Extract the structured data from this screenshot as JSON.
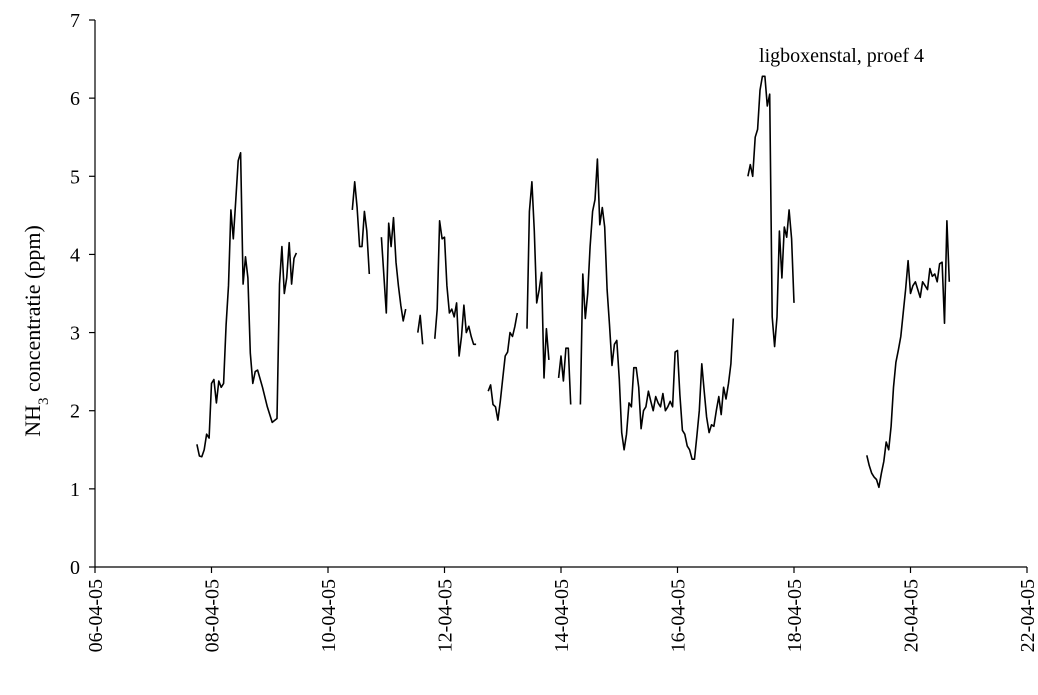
{
  "chart_data": {
    "type": "line",
    "title": "",
    "annotation": "ligboxenstal, proef 4",
    "xlabel": "",
    "ylabel_main": "NH",
    "ylabel_sub": "3",
    "ylabel_rest": " concentratie (ppm)",
    "ylim": [
      0,
      7
    ],
    "yticks": [
      "0",
      "1",
      "2",
      "3",
      "4",
      "5",
      "6",
      "7"
    ],
    "xlim": [
      "2005-04-06",
      "2005-04-22"
    ],
    "xticks": [
      "06-04-05",
      "08-04-05",
      "10-04-05",
      "12-04-05",
      "14-04-05",
      "16-04-05",
      "18-04-05",
      "20-04-05",
      "22-04-05"
    ],
    "grid": false,
    "legend": "none",
    "line_color": "#000000",
    "segments": [
      [
        [
          "2005-04-07 18:00",
          1.57
        ],
        [
          "2005-04-07 19:00",
          1.42
        ],
        [
          "2005-04-07 20:00",
          1.41
        ],
        [
          "2005-04-07 21:00",
          1.5
        ],
        [
          "2005-04-07 22:00",
          1.7
        ],
        [
          "2005-04-07 23:00",
          1.65
        ],
        [
          "2005-04-08 00:00",
          2.35
        ],
        [
          "2005-04-08 01:00",
          2.4
        ],
        [
          "2005-04-08 02:00",
          2.1
        ],
        [
          "2005-04-08 03:00",
          2.38
        ],
        [
          "2005-04-08 04:00",
          2.3
        ],
        [
          "2005-04-08 05:00",
          2.35
        ],
        [
          "2005-04-08 06:00",
          3.1
        ],
        [
          "2005-04-08 07:00",
          3.6
        ],
        [
          "2005-04-08 08:00",
          4.57
        ],
        [
          "2005-04-08 09:00",
          4.2
        ],
        [
          "2005-04-08 10:00",
          4.7
        ],
        [
          "2005-04-08 11:00",
          5.2
        ],
        [
          "2005-04-08 12:00",
          5.3
        ],
        [
          "2005-04-08 13:00",
          3.62
        ],
        [
          "2005-04-08 14:00",
          3.97
        ],
        [
          "2005-04-08 15:00",
          3.7
        ],
        [
          "2005-04-08 16:00",
          2.74
        ],
        [
          "2005-04-08 17:00",
          2.35
        ],
        [
          "2005-04-08 18:00",
          2.5
        ],
        [
          "2005-04-08 19:00",
          2.52
        ],
        [
          "2005-04-08 21:00",
          2.3
        ],
        [
          "2005-04-08 23:00",
          2.05
        ],
        [
          "2005-04-09 01:00",
          1.85
        ],
        [
          "2005-04-09 03:00",
          1.9
        ],
        [
          "2005-04-09 04:00",
          3.62
        ],
        [
          "2005-04-09 05:00",
          4.1
        ],
        [
          "2005-04-09 06:00",
          3.5
        ],
        [
          "2005-04-09 07:00",
          3.7
        ],
        [
          "2005-04-09 08:00",
          4.15
        ],
        [
          "2005-04-09 09:00",
          3.62
        ],
        [
          "2005-04-09 10:00",
          3.95
        ],
        [
          "2005-04-09 11:00",
          4.02
        ]
      ],
      [
        [
          "2005-04-10 10:00",
          4.57
        ],
        [
          "2005-04-10 11:00",
          4.93
        ],
        [
          "2005-04-10 12:00",
          4.6
        ],
        [
          "2005-04-10 13:00",
          4.1
        ],
        [
          "2005-04-10 14:00",
          4.1
        ],
        [
          "2005-04-10 15:00",
          4.55
        ],
        [
          "2005-04-10 16:00",
          4.3
        ],
        [
          "2005-04-10 17:00",
          3.75
        ]
      ],
      [
        [
          "2005-04-10 22:00",
          4.22
        ],
        [
          "2005-04-11 00:00",
          3.25
        ],
        [
          "2005-04-11 01:00",
          4.4
        ],
        [
          "2005-04-11 02:00",
          4.1
        ],
        [
          "2005-04-11 03:00",
          4.47
        ],
        [
          "2005-04-11 04:00",
          3.9
        ],
        [
          "2005-04-11 05:00",
          3.6
        ],
        [
          "2005-04-11 06:00",
          3.35
        ],
        [
          "2005-04-11 07:00",
          3.15
        ],
        [
          "2005-04-11 08:00",
          3.3
        ]
      ],
      [
        [
          "2005-04-11 13:00",
          3.0
        ],
        [
          "2005-04-11 14:00",
          3.22
        ],
        [
          "2005-04-11 15:00",
          2.85
        ]
      ],
      [
        [
          "2005-04-11 20:00",
          2.92
        ],
        [
          "2005-04-11 21:00",
          3.3
        ],
        [
          "2005-04-11 22:00",
          4.43
        ],
        [
          "2005-04-11 23:00",
          4.2
        ],
        [
          "2005-04-12 00:00",
          4.22
        ],
        [
          "2005-04-12 01:00",
          3.6
        ],
        [
          "2005-04-12 02:00",
          3.25
        ],
        [
          "2005-04-12 03:00",
          3.3
        ],
        [
          "2005-04-12 04:00",
          3.2
        ],
        [
          "2005-04-12 05:00",
          3.38
        ],
        [
          "2005-04-12 06:00",
          2.7
        ],
        [
          "2005-04-12 07:00",
          2.95
        ],
        [
          "2005-04-12 08:00",
          3.35
        ],
        [
          "2005-04-12 09:00",
          3.0
        ],
        [
          "2005-04-12 10:00",
          3.08
        ],
        [
          "2005-04-12 11:00",
          2.95
        ],
        [
          "2005-04-12 12:00",
          2.85
        ],
        [
          "2005-04-12 13:00",
          2.85
        ]
      ],
      [
        [
          "2005-04-12 18:00",
          2.25
        ],
        [
          "2005-04-12 19:00",
          2.33
        ],
        [
          "2005-04-12 20:00",
          2.08
        ],
        [
          "2005-04-12 21:00",
          2.05
        ],
        [
          "2005-04-12 22:00",
          1.88
        ],
        [
          "2005-04-12 23:00",
          2.12
        ],
        [
          "2005-04-13 00:00",
          2.42
        ],
        [
          "2005-04-13 01:00",
          2.7
        ],
        [
          "2005-04-13 02:00",
          2.75
        ],
        [
          "2005-04-13 03:00",
          3.0
        ],
        [
          "2005-04-13 04:00",
          2.95
        ],
        [
          "2005-04-13 05:00",
          3.08
        ],
        [
          "2005-04-13 06:00",
          3.25
        ]
      ],
      [
        [
          "2005-04-13 10:00",
          3.05
        ],
        [
          "2005-04-13 11:00",
          4.55
        ],
        [
          "2005-04-13 12:00",
          4.93
        ],
        [
          "2005-04-13 13:00",
          4.3
        ],
        [
          "2005-04-13 14:00",
          3.38
        ],
        [
          "2005-04-13 15:00",
          3.55
        ],
        [
          "2005-04-13 16:00",
          3.77
        ],
        [
          "2005-04-13 17:00",
          2.42
        ],
        [
          "2005-04-13 18:00",
          3.05
        ],
        [
          "2005-04-13 19:00",
          2.65
        ]
      ],
      [
        [
          "2005-04-13 23:00",
          2.42
        ],
        [
          "2005-04-14 00:00",
          2.7
        ],
        [
          "2005-04-14 01:00",
          2.38
        ],
        [
          "2005-04-14 02:00",
          2.8
        ],
        [
          "2005-04-14 03:00",
          2.8
        ],
        [
          "2005-04-14 04:00",
          2.08
        ]
      ],
      [
        [
          "2005-04-14 08:00",
          2.08
        ],
        [
          "2005-04-14 09:00",
          3.75
        ],
        [
          "2005-04-14 10:00",
          3.18
        ],
        [
          "2005-04-14 11:00",
          3.5
        ],
        [
          "2005-04-14 12:00",
          4.1
        ],
        [
          "2005-04-14 13:00",
          4.55
        ],
        [
          "2005-04-14 14:00",
          4.7
        ],
        [
          "2005-04-14 15:00",
          5.22
        ],
        [
          "2005-04-14 16:00",
          4.38
        ],
        [
          "2005-04-14 17:00",
          4.6
        ],
        [
          "2005-04-14 18:00",
          4.35
        ],
        [
          "2005-04-14 19:00",
          3.55
        ],
        [
          "2005-04-14 20:00",
          3.1
        ],
        [
          "2005-04-14 21:00",
          2.58
        ],
        [
          "2005-04-14 22:00",
          2.85
        ],
        [
          "2005-04-14 23:00",
          2.9
        ],
        [
          "2005-04-15 00:00",
          2.4
        ],
        [
          "2005-04-15 01:00",
          1.72
        ],
        [
          "2005-04-15 02:00",
          1.5
        ],
        [
          "2005-04-15 03:00",
          1.7
        ],
        [
          "2005-04-15 04:00",
          2.1
        ],
        [
          "2005-04-15 05:00",
          2.05
        ],
        [
          "2005-04-15 06:00",
          2.55
        ],
        [
          "2005-04-15 07:00",
          2.55
        ],
        [
          "2005-04-15 08:00",
          2.3
        ],
        [
          "2005-04-15 09:00",
          1.77
        ],
        [
          "2005-04-15 10:00",
          2.0
        ],
        [
          "2005-04-15 11:00",
          2.05
        ],
        [
          "2005-04-15 12:00",
          2.25
        ],
        [
          "2005-04-15 13:00",
          2.12
        ],
        [
          "2005-04-15 14:00",
          2.0
        ],
        [
          "2005-04-15 15:00",
          2.18
        ],
        [
          "2005-04-15 16:00",
          2.1
        ],
        [
          "2005-04-15 17:00",
          2.05
        ],
        [
          "2005-04-15 18:00",
          2.22
        ],
        [
          "2005-04-15 19:00",
          2.0
        ],
        [
          "2005-04-15 20:00",
          2.05
        ],
        [
          "2005-04-15 21:00",
          2.12
        ],
        [
          "2005-04-15 22:00",
          2.05
        ],
        [
          "2005-04-15 23:00",
          2.75
        ],
        [
          "2005-04-16 00:00",
          2.77
        ],
        [
          "2005-04-16 01:00",
          2.2
        ],
        [
          "2005-04-16 02:00",
          1.75
        ],
        [
          "2005-04-16 03:00",
          1.7
        ],
        [
          "2005-04-16 04:00",
          1.55
        ],
        [
          "2005-04-16 05:00",
          1.5
        ],
        [
          "2005-04-16 06:00",
          1.38
        ],
        [
          "2005-04-16 07:00",
          1.38
        ],
        [
          "2005-04-16 08:00",
          1.68
        ],
        [
          "2005-04-16 09:00",
          2.0
        ],
        [
          "2005-04-16 10:00",
          2.6
        ],
        [
          "2005-04-16 11:00",
          2.25
        ],
        [
          "2005-04-16 12:00",
          1.92
        ],
        [
          "2005-04-16 13:00",
          1.72
        ],
        [
          "2005-04-16 14:00",
          1.82
        ],
        [
          "2005-04-16 15:00",
          1.8
        ],
        [
          "2005-04-16 16:00",
          2.0
        ],
        [
          "2005-04-16 17:00",
          2.18
        ],
        [
          "2005-04-16 18:00",
          1.95
        ],
        [
          "2005-04-16 19:00",
          2.3
        ],
        [
          "2005-04-16 20:00",
          2.15
        ],
        [
          "2005-04-16 21:00",
          2.35
        ],
        [
          "2005-04-16 22:00",
          2.6
        ],
        [
          "2005-04-16 23:00",
          3.18
        ]
      ],
      [
        [
          "2005-04-17 05:00",
          5.0
        ],
        [
          "2005-04-17 06:00",
          5.15
        ],
        [
          "2005-04-17 07:00",
          5.0
        ],
        [
          "2005-04-17 08:00",
          5.5
        ],
        [
          "2005-04-17 09:00",
          5.6
        ],
        [
          "2005-04-17 10:00",
          6.1
        ],
        [
          "2005-04-17 11:00",
          6.28
        ],
        [
          "2005-04-17 12:00",
          6.28
        ],
        [
          "2005-04-17 13:00",
          5.9
        ],
        [
          "2005-04-17 14:00",
          6.05
        ],
        [
          "2005-04-17 15:00",
          3.2
        ],
        [
          "2005-04-17 16:00",
          2.82
        ],
        [
          "2005-04-17 17:00",
          3.2
        ],
        [
          "2005-04-17 18:00",
          4.3
        ],
        [
          "2005-04-17 19:00",
          3.7
        ],
        [
          "2005-04-17 20:00",
          4.35
        ],
        [
          "2005-04-17 21:00",
          4.22
        ],
        [
          "2005-04-17 22:00",
          4.57
        ],
        [
          "2005-04-17 23:00",
          4.2
        ],
        [
          "2005-04-18 00:00",
          3.38
        ]
      ],
      [
        [
          "2005-04-19 06:00",
          1.43
        ],
        [
          "2005-04-19 07:00",
          1.3
        ],
        [
          "2005-04-19 08:00",
          1.2
        ],
        [
          "2005-04-19 09:00",
          1.15
        ],
        [
          "2005-04-19 10:00",
          1.12
        ],
        [
          "2005-04-19 11:00",
          1.02
        ],
        [
          "2005-04-19 12:00",
          1.2
        ],
        [
          "2005-04-19 13:00",
          1.35
        ],
        [
          "2005-04-19 14:00",
          1.6
        ],
        [
          "2005-04-19 15:00",
          1.5
        ],
        [
          "2005-04-19 16:00",
          1.8
        ],
        [
          "2005-04-19 17:00",
          2.3
        ],
        [
          "2005-04-19 18:00",
          2.62
        ],
        [
          "2005-04-19 19:00",
          2.78
        ],
        [
          "2005-04-19 20:00",
          2.95
        ],
        [
          "2005-04-19 21:00",
          3.25
        ],
        [
          "2005-04-19 22:00",
          3.55
        ],
        [
          "2005-04-19 23:00",
          3.92
        ],
        [
          "2005-04-20 00:00",
          3.5
        ],
        [
          "2005-04-20 01:00",
          3.6
        ],
        [
          "2005-04-20 02:00",
          3.65
        ],
        [
          "2005-04-20 03:00",
          3.55
        ],
        [
          "2005-04-20 04:00",
          3.45
        ],
        [
          "2005-04-20 05:00",
          3.65
        ],
        [
          "2005-04-20 06:00",
          3.6
        ],
        [
          "2005-04-20 07:00",
          3.55
        ],
        [
          "2005-04-20 08:00",
          3.82
        ],
        [
          "2005-04-20 09:00",
          3.72
        ],
        [
          "2005-04-20 10:00",
          3.75
        ],
        [
          "2005-04-20 11:00",
          3.65
        ],
        [
          "2005-04-20 12:00",
          3.88
        ],
        [
          "2005-04-20 13:00",
          3.9
        ],
        [
          "2005-04-20 14:00",
          3.12
        ],
        [
          "2005-04-20 15:00",
          4.43
        ],
        [
          "2005-04-20 16:00",
          3.65
        ]
      ]
    ]
  }
}
